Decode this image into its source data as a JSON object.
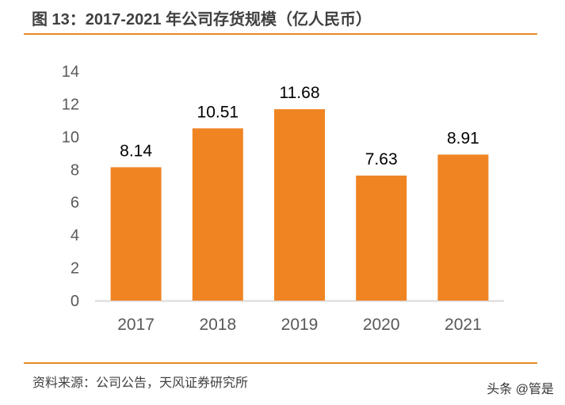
{
  "header": {
    "title": "图 13：2017-2021 年公司存货规模（亿人民币）"
  },
  "footer": {
    "source": "资料来源：公司公告，天风证券研究所",
    "watermark": "头条 @管是"
  },
  "colors": {
    "bar": "#f08423",
    "rule": "#e8892a",
    "axis": "#d9d9d9",
    "tick_text": "#595959",
    "label_text": "#000000"
  },
  "chart_data": {
    "type": "bar",
    "title": "2017-2021 年公司存货规模（亿人民币）",
    "xlabel": "",
    "ylabel": "",
    "categories": [
      "2017",
      "2018",
      "2019",
      "2020",
      "2021"
    ],
    "values": [
      8.14,
      10.51,
      11.68,
      7.63,
      8.91
    ],
    "value_labels": [
      "8.14",
      "10.51",
      "11.68",
      "7.63",
      "8.91"
    ],
    "ylim": [
      0,
      14
    ],
    "yticks": [
      0,
      2,
      4,
      6,
      8,
      10,
      12,
      14
    ],
    "grid": false,
    "legend": "none"
  }
}
